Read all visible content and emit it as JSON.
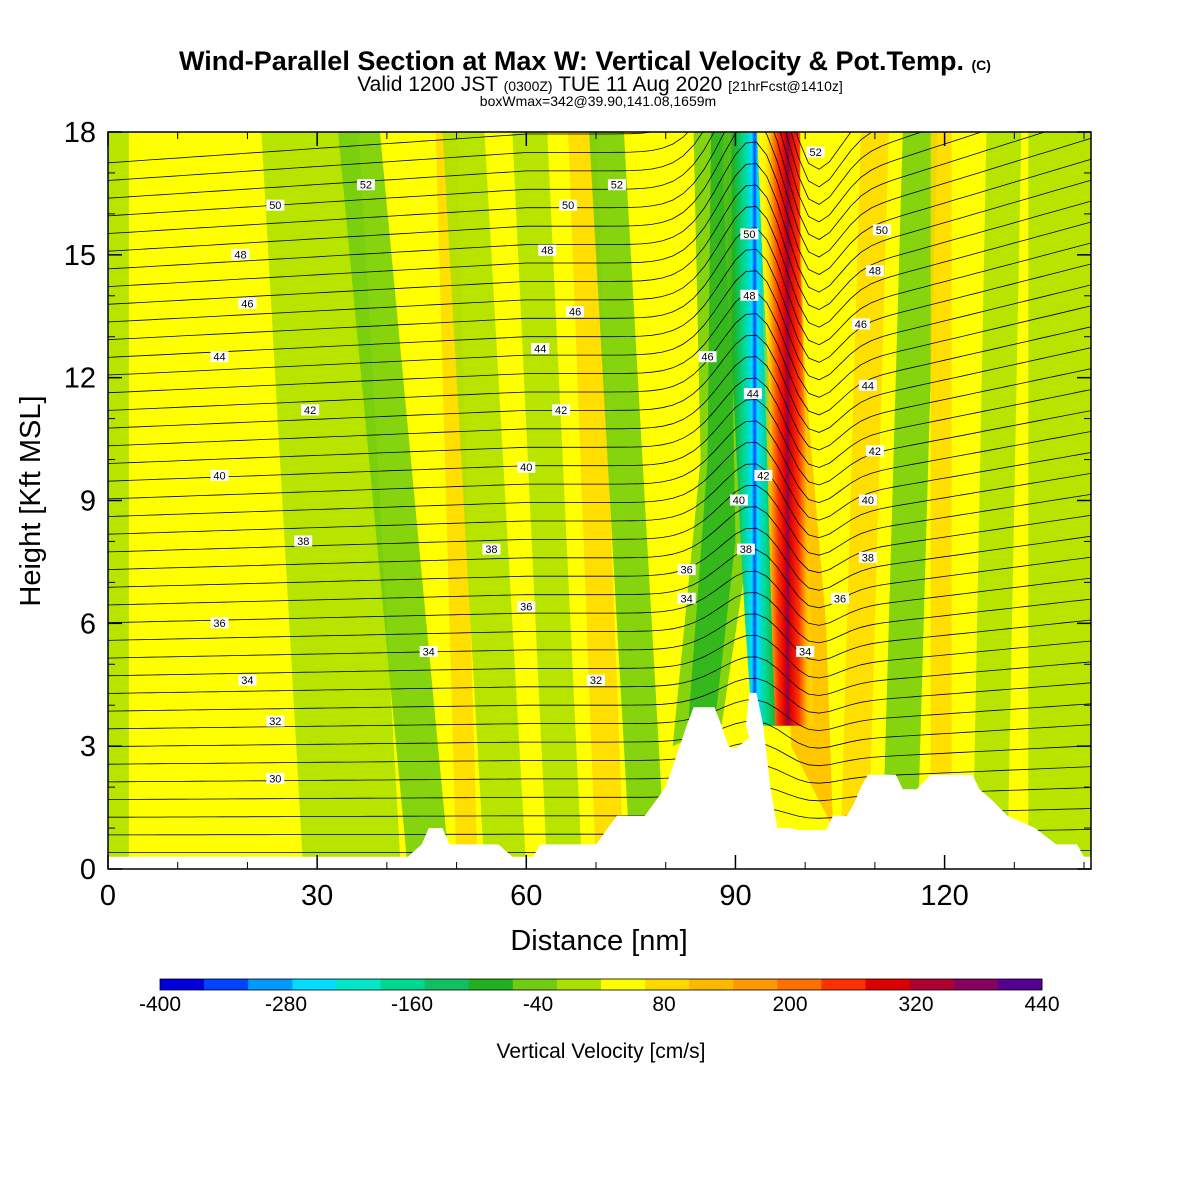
{
  "chart_data": {
    "type": "heatmap",
    "title": "Wind-Parallel Section at Max W: Vertical Velocity & Pot.Temp.",
    "title_mark": "(C)",
    "subtitle_main": "Valid 1200 JST",
    "subtitle_zulu": "(0300Z)",
    "subtitle_date": "TUE 11 Aug 2020",
    "subtitle_fcst": "[21hrFcst@1410z]",
    "subtitle2": "boxWmax=342@39.90,141.08,1659m",
    "xlabel": "Distance [nm]",
    "ylabel": "Height [Kft MSL]",
    "xlim": [
      0,
      141
    ],
    "ylim": [
      0,
      18
    ],
    "xticks": [
      "0",
      "30",
      "60",
      "90",
      "120"
    ],
    "yticks": [
      "0",
      "3",
      "6",
      "9",
      "12",
      "15",
      "18"
    ],
    "colorbar_label": "Vertical Velocity [cm/s]",
    "colorbar_ticks": [
      "-400",
      "-280",
      "-160",
      "-40",
      "80",
      "200",
      "320",
      "440"
    ],
    "colorbar_colors": [
      "#0000dd",
      "#0044ff",
      "#0099ff",
      "#00ddff",
      "#00e8c8",
      "#00d890",
      "#10c060",
      "#20b020",
      "#70cc10",
      "#aae000",
      "#ffff00",
      "#ffd800",
      "#ffb800",
      "#ff9800",
      "#ff7000",
      "#ff3000",
      "#dd0000",
      "#b00030",
      "#880060",
      "#550090"
    ],
    "terrain": [
      [
        0,
        0.3
      ],
      [
        3,
        0.3
      ],
      [
        5,
        0.3
      ],
      [
        8,
        0.3
      ],
      [
        12,
        0.3
      ],
      [
        18,
        0.3
      ],
      [
        25,
        0.3
      ],
      [
        30,
        0.3
      ],
      [
        35,
        0.3
      ],
      [
        40,
        0.3
      ],
      [
        43,
        0.3
      ],
      [
        45,
        0.6
      ],
      [
        46,
        1.0
      ],
      [
        48,
        1.0
      ],
      [
        49,
        0.6
      ],
      [
        53,
        0.6
      ],
      [
        56,
        0.6
      ],
      [
        58,
        0.3
      ],
      [
        61,
        0.3
      ],
      [
        62,
        0.6
      ],
      [
        66,
        0.6
      ],
      [
        70,
        0.6
      ],
      [
        73,
        1.3
      ],
      [
        77,
        1.3
      ],
      [
        80,
        2.0
      ],
      [
        81,
        2.5
      ],
      [
        82,
        3.0
      ],
      [
        83,
        3.5
      ],
      [
        84,
        3.95
      ],
      [
        87,
        3.95
      ],
      [
        88,
        3.5
      ],
      [
        89,
        3.0
      ],
      [
        90,
        2.95
      ],
      [
        92,
        3.2
      ],
      [
        91.5,
        3.5
      ],
      [
        92,
        4.3
      ],
      [
        93,
        4.3
      ],
      [
        94,
        3.5
      ],
      [
        95,
        2.0
      ],
      [
        96,
        1.0
      ],
      [
        98,
        1.0
      ],
      [
        99,
        0.95
      ],
      [
        100,
        0.95
      ],
      [
        101,
        0.95
      ],
      [
        103,
        0.95
      ],
      [
        104,
        1.3
      ],
      [
        106,
        1.3
      ],
      [
        107,
        1.6
      ],
      [
        108,
        2.0
      ],
      [
        109,
        2.3
      ],
      [
        111,
        2.3
      ],
      [
        112,
        2.3
      ],
      [
        113,
        2.3
      ],
      [
        114,
        1.95
      ],
      [
        116,
        1.95
      ],
      [
        118,
        2.3
      ],
      [
        121,
        2.3
      ],
      [
        122,
        2.3
      ],
      [
        124,
        2.3
      ],
      [
        125,
        1.95
      ],
      [
        127,
        1.65
      ],
      [
        129,
        1.3
      ],
      [
        133,
        1.0
      ],
      [
        136,
        0.6
      ],
      [
        139,
        0.6
      ],
      [
        140,
        0.3
      ],
      [
        141,
        0.3
      ]
    ],
    "updraft_axis": [
      [
        98.5,
        3.5
      ],
      [
        98,
        6
      ],
      [
        97.5,
        9
      ],
      [
        97,
        12
      ],
      [
        96.5,
        15
      ],
      [
        96.5,
        18
      ]
    ],
    "downdraft_axis": [
      [
        95,
        3.5
      ],
      [
        94,
        6
      ],
      [
        93.2,
        8.5
      ],
      [
        92.5,
        11
      ],
      [
        91.5,
        14
      ],
      [
        90.5,
        18
      ]
    ],
    "theta_contour_labels": [
      {
        "text": "30",
        "x": 24,
        "y": 2.2
      },
      {
        "text": "32",
        "x": 24,
        "y": 3.6
      },
      {
        "text": "32",
        "x": 70,
        "y": 4.6
      },
      {
        "text": "34",
        "x": 20,
        "y": 4.6
      },
      {
        "text": "34",
        "x": 46,
        "y": 5.3
      },
      {
        "text": "34",
        "x": 100,
        "y": 5.3
      },
      {
        "text": "36",
        "x": 16,
        "y": 6.0
      },
      {
        "text": "36",
        "x": 60,
        "y": 6.4
      },
      {
        "text": "36",
        "x": 105,
        "y": 6.6
      },
      {
        "text": "36",
        "x": 83,
        "y": 7.3
      },
      {
        "text": "38",
        "x": 28,
        "y": 8.0
      },
      {
        "text": "38",
        "x": 55,
        "y": 7.8
      },
      {
        "text": "38",
        "x": 91.5,
        "y": 7.8
      },
      {
        "text": "38",
        "x": 109,
        "y": 7.6
      },
      {
        "text": "34",
        "x": 83,
        "y": 6.6
      },
      {
        "text": "40",
        "x": 16,
        "y": 9.6
      },
      {
        "text": "40",
        "x": 60,
        "y": 9.8
      },
      {
        "text": "40",
        "x": 90.5,
        "y": 9.0
      },
      {
        "text": "40",
        "x": 109,
        "y": 9.0
      },
      {
        "text": "42",
        "x": 29,
        "y": 11.2
      },
      {
        "text": "42",
        "x": 65,
        "y": 11.2
      },
      {
        "text": "42",
        "x": 94,
        "y": 9.6
      },
      {
        "text": "42",
        "x": 110,
        "y": 10.2
      },
      {
        "text": "44",
        "x": 16,
        "y": 12.5
      },
      {
        "text": "44",
        "x": 62,
        "y": 12.7
      },
      {
        "text": "44",
        "x": 92.5,
        "y": 11.6
      },
      {
        "text": "44",
        "x": 109,
        "y": 11.8
      },
      {
        "text": "46",
        "x": 20,
        "y": 13.8
      },
      {
        "text": "46",
        "x": 67,
        "y": 13.6
      },
      {
        "text": "46",
        "x": 86,
        "y": 12.5
      },
      {
        "text": "46",
        "x": 108,
        "y": 13.3
      },
      {
        "text": "48",
        "x": 19,
        "y": 15.0
      },
      {
        "text": "48",
        "x": 63,
        "y": 15.1
      },
      {
        "text": "48",
        "x": 92,
        "y": 14.0
      },
      {
        "text": "48",
        "x": 110,
        "y": 14.6
      },
      {
        "text": "50",
        "x": 24,
        "y": 16.2
      },
      {
        "text": "50",
        "x": 66,
        "y": 16.2
      },
      {
        "text": "50",
        "x": 92,
        "y": 15.5
      },
      {
        "text": "50",
        "x": 111,
        "y": 15.6
      },
      {
        "text": "52",
        "x": 37,
        "y": 16.7
      },
      {
        "text": "52",
        "x": 73,
        "y": 16.7
      },
      {
        "text": "52",
        "x": 101.5,
        "y": 17.5
      }
    ]
  }
}
